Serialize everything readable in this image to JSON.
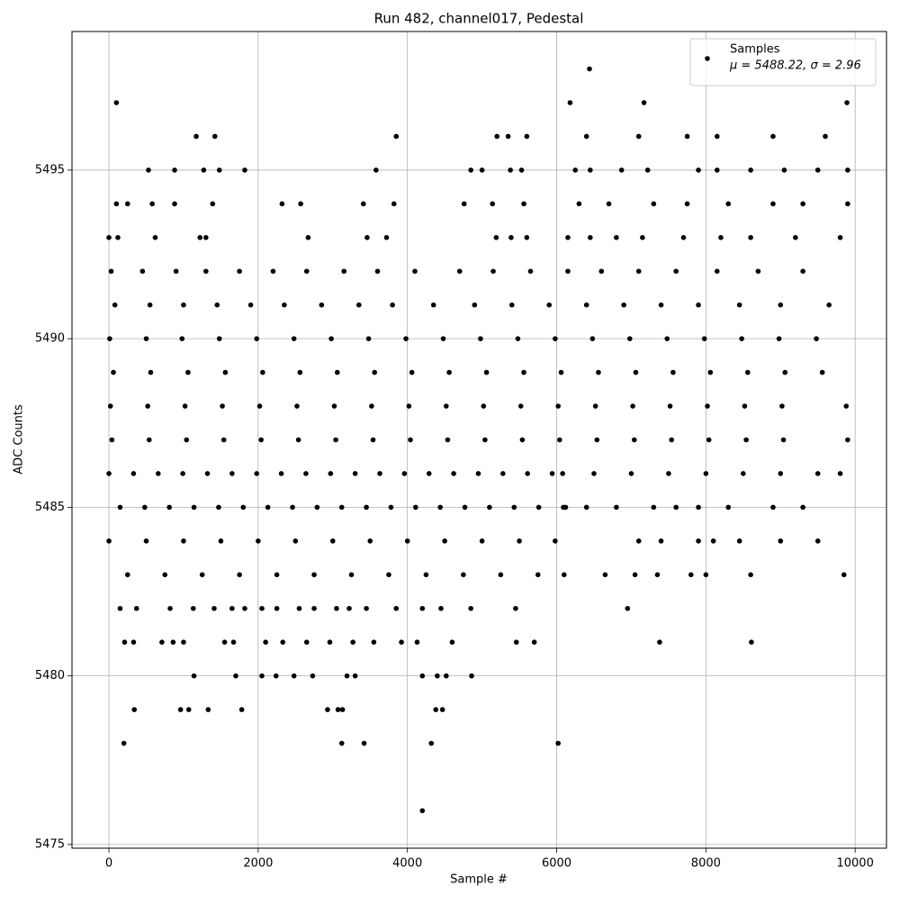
{
  "chart_data": {
    "type": "scatter",
    "title": "Run 482, channel017, Pedestal",
    "xlabel": "Sample #",
    "ylabel": "ADC Counts",
    "xlim": [
      -495,
      10420
    ],
    "ylim": [
      5474.89,
      5499.11
    ],
    "xticks": [
      0,
      2000,
      4000,
      6000,
      8000,
      10000
    ],
    "yticks": [
      5475,
      5480,
      5485,
      5490,
      5495
    ],
    "grid": true,
    "legend": "upper right",
    "series": [
      {
        "name": "Samples",
        "legend_note": "μ = 5488.22, σ = 2.96",
        "color": "#000000",
        "x": [
          30,
          450,
          900,
          1300,
          1750,
          2200,
          2650,
          3150,
          3600,
          4100,
          4700,
          5150,
          5650,
          6150,
          6600,
          7100,
          7600,
          8150,
          8700,
          9300,
          80,
          550,
          1000,
          1450,
          1900,
          2350,
          2850,
          3350,
          3800,
          4350,
          4900,
          5400,
          5900,
          6400,
          6900,
          7400,
          7900,
          8450,
          9000,
          9650,
          10,
          500,
          980,
          1480,
          1980,
          2480,
          2980,
          3480,
          3980,
          4480,
          4980,
          5480,
          5980,
          6480,
          6980,
          7480,
          7980,
          8480,
          8980,
          9480,
          60,
          560,
          1060,
          1560,
          2060,
          2560,
          3060,
          3560,
          4060,
          4560,
          5060,
          5560,
          6060,
          6560,
          7060,
          7560,
          8060,
          8560,
          9060,
          9560,
          20,
          520,
          1020,
          1520,
          2020,
          2520,
          3020,
          3520,
          4020,
          4520,
          5020,
          5520,
          6020,
          6520,
          7020,
          7520,
          8020,
          8520,
          9020,
          9880,
          40,
          540,
          1040,
          1540,
          2040,
          2540,
          3040,
          3540,
          4040,
          4540,
          5040,
          5540,
          6040,
          6540,
          7040,
          7540,
          8040,
          8540,
          9040,
          9900,
          0,
          330,
          660,
          990,
          1320,
          1650,
          1980,
          2310,
          2640,
          2970,
          3300,
          3630,
          3960,
          4290,
          4620,
          4950,
          5280,
          5610,
          5940,
          6080,
          6500,
          7000,
          7500,
          8000,
          8500,
          9000,
          9500,
          9800,
          150,
          480,
          810,
          1140,
          1470,
          1800,
          2130,
          2460,
          2790,
          3120,
          3450,
          3780,
          4110,
          4440,
          4770,
          5100,
          5430,
          5760,
          6090,
          6120,
          6400,
          6800,
          7300,
          7600,
          7900,
          8300,
          8900,
          9300,
          0,
          500,
          1000,
          1500,
          2000,
          2500,
          3000,
          3500,
          4000,
          4500,
          5000,
          5500,
          5980,
          7100,
          7400,
          7900,
          8100,
          8450,
          9000,
          9500,
          250,
          750,
          1250,
          1750,
          2250,
          2750,
          3250,
          3750,
          4250,
          4750,
          5250,
          5750,
          6100,
          6650,
          7050,
          7350,
          7800,
          8000,
          8600,
          9850,
          150,
          370,
          820,
          1130,
          1410,
          1650,
          1820,
          2050,
          2250,
          2550,
          2750,
          3050,
          3220,
          3450,
          3850,
          4200,
          4450,
          4850,
          5450,
          6950,
          210,
          330,
          710,
          860,
          1000,
          1550,
          1670,
          2100,
          2330,
          2650,
          2960,
          3270,
          3550,
          3920,
          4130,
          4600,
          5460,
          5700,
          7380,
          8610,
          0,
          120,
          620,
          1220,
          1300,
          2670,
          3460,
          3720,
          5190,
          5390,
          5600,
          6150,
          6450,
          6800,
          7150,
          7700,
          8200,
          8600,
          9200,
          9800,
          100,
          250,
          580,
          880,
          1390,
          2320,
          2570,
          3410,
          3820,
          4760,
          5140,
          5560,
          6300,
          6700,
          7300,
          7750,
          8300,
          8900,
          9300,
          9900,
          530,
          880,
          1270,
          1480,
          1820,
          3580,
          4850,
          5000,
          5380,
          5530,
          6250,
          6450,
          6870,
          7220,
          7900,
          8150,
          8600,
          9050,
          9500,
          9900,
          1170,
          1420,
          3850,
          5200,
          5350,
          5600,
          6400,
          7100,
          7750,
          8150,
          8900,
          9600,
          100,
          6180,
          7170,
          9890,
          6440,
          1140,
          1700,
          2050,
          2240,
          2480,
          2730,
          3190,
          3300,
          4200,
          4400,
          4520,
          4860,
          340,
          960,
          1070,
          1330,
          1780,
          2930,
          3070,
          3130,
          4380,
          4470,
          200,
          3120,
          3420,
          4320,
          6020,
          4200
        ],
        "values": [
          5492,
          5492,
          5492,
          5492,
          5492,
          5492,
          5492,
          5492,
          5492,
          5492,
          5492,
          5492,
          5492,
          5492,
          5492,
          5492,
          5492,
          5492,
          5492,
          5492,
          5491,
          5491,
          5491,
          5491,
          5491,
          5491,
          5491,
          5491,
          5491,
          5491,
          5491,
          5491,
          5491,
          5491,
          5491,
          5491,
          5491,
          5491,
          5491,
          5491,
          5490,
          5490,
          5490,
          5490,
          5490,
          5490,
          5490,
          5490,
          5490,
          5490,
          5490,
          5490,
          5490,
          5490,
          5490,
          5490,
          5490,
          5490,
          5490,
          5490,
          5489,
          5489,
          5489,
          5489,
          5489,
          5489,
          5489,
          5489,
          5489,
          5489,
          5489,
          5489,
          5489,
          5489,
          5489,
          5489,
          5489,
          5489,
          5489,
          5489,
          5488,
          5488,
          5488,
          5488,
          5488,
          5488,
          5488,
          5488,
          5488,
          5488,
          5488,
          5488,
          5488,
          5488,
          5488,
          5488,
          5488,
          5488,
          5488,
          5488,
          5487,
          5487,
          5487,
          5487,
          5487,
          5487,
          5487,
          5487,
          5487,
          5487,
          5487,
          5487,
          5487,
          5487,
          5487,
          5487,
          5487,
          5487,
          5487,
          5487,
          5486,
          5486,
          5486,
          5486,
          5486,
          5486,
          5486,
          5486,
          5486,
          5486,
          5486,
          5486,
          5486,
          5486,
          5486,
          5486,
          5486,
          5486,
          5486,
          5486,
          5486,
          5486,
          5486,
          5486,
          5486,
          5486,
          5486,
          5486,
          5485,
          5485,
          5485,
          5485,
          5485,
          5485,
          5485,
          5485,
          5485,
          5485,
          5485,
          5485,
          5485,
          5485,
          5485,
          5485,
          5485,
          5485,
          5485,
          5485,
          5485,
          5485,
          5485,
          5485,
          5485,
          5485,
          5485,
          5485,
          5484,
          5484,
          5484,
          5484,
          5484,
          5484,
          5484,
          5484,
          5484,
          5484,
          5484,
          5484,
          5484,
          5484,
          5484,
          5484,
          5484,
          5484,
          5484,
          5484,
          5483,
          5483,
          5483,
          5483,
          5483,
          5483,
          5483,
          5483,
          5483,
          5483,
          5483,
          5483,
          5483,
          5483,
          5483,
          5483,
          5483,
          5483,
          5483,
          5483,
          5482,
          5482,
          5482,
          5482,
          5482,
          5482,
          5482,
          5482,
          5482,
          5482,
          5482,
          5482,
          5482,
          5482,
          5482,
          5482,
          5482,
          5482,
          5482,
          5482,
          5481,
          5481,
          5481,
          5481,
          5481,
          5481,
          5481,
          5481,
          5481,
          5481,
          5481,
          5481,
          5481,
          5481,
          5481,
          5481,
          5481,
          5481,
          5481,
          5481,
          5493,
          5493,
          5493,
          5493,
          5493,
          5493,
          5493,
          5493,
          5493,
          5493,
          5493,
          5493,
          5493,
          5493,
          5493,
          5493,
          5493,
          5493,
          5493,
          5493,
          5494,
          5494,
          5494,
          5494,
          5494,
          5494,
          5494,
          5494,
          5494,
          5494,
          5494,
          5494,
          5494,
          5494,
          5494,
          5494,
          5494,
          5494,
          5494,
          5494,
          5495,
          5495,
          5495,
          5495,
          5495,
          5495,
          5495,
          5495,
          5495,
          5495,
          5495,
          5495,
          5495,
          5495,
          5495,
          5495,
          5495,
          5495,
          5495,
          5495,
          5496,
          5496,
          5496,
          5496,
          5496,
          5496,
          5496,
          5496,
          5496,
          5496,
          5496,
          5496,
          5497,
          5497,
          5497,
          5497,
          5498,
          5480,
          5480,
          5480,
          5480,
          5480,
          5480,
          5480,
          5480,
          5480,
          5480,
          5480,
          5480,
          5479,
          5479,
          5479,
          5479,
          5479,
          5479,
          5479,
          5479,
          5479,
          5479,
          5478,
          5478,
          5478,
          5478,
          5478,
          5476
        ]
      }
    ]
  }
}
